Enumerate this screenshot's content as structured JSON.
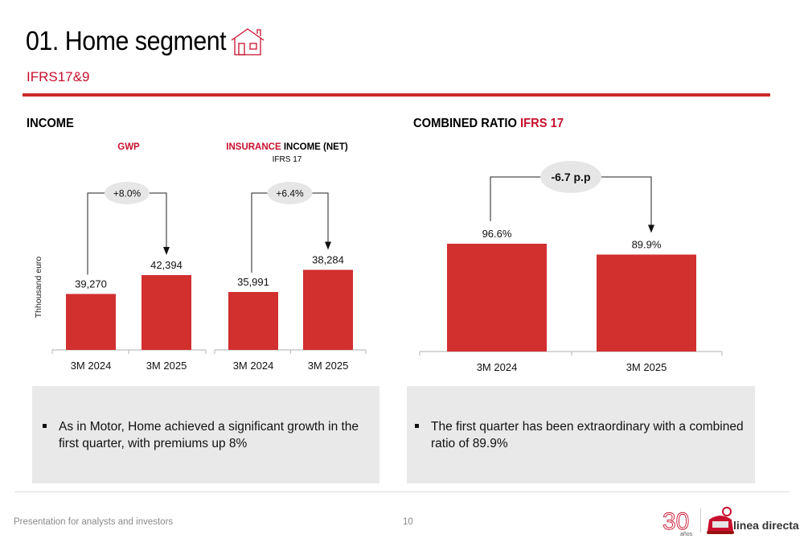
{
  "header": {
    "title": "01. Home segment",
    "subtitle": "IFRS17&9"
  },
  "income": {
    "section_title": "INCOME",
    "y_axis_label": "Thhousand euro",
    "gwp": {
      "title": "GWP",
      "change": "+8.0%"
    },
    "insurance_income": {
      "title_red": "INSURANCE",
      "title_black": " INCOME (NET)",
      "subtitle": "IFRS 17",
      "change": "+6.4%"
    }
  },
  "combined_ratio": {
    "section_title_black": "COMBINED RATIO ",
    "section_title_red": "IFRS 17",
    "change": "-6.7 p.p"
  },
  "chart_data": [
    {
      "type": "bar",
      "title": "GWP",
      "ylabel": "Thhousand euro",
      "categories": [
        "3M 2024",
        "3M 2025"
      ],
      "values": [
        39270,
        42394
      ],
      "value_labels": [
        "39,270",
        "42,394"
      ],
      "annotation": "+8.0%",
      "color": "#d22f2f"
    },
    {
      "type": "bar",
      "title": "INSURANCE INCOME (NET)",
      "subtitle": "IFRS 17",
      "categories": [
        "3M 2024",
        "3M 2025"
      ],
      "values": [
        35991,
        38284
      ],
      "value_labels": [
        "35,991",
        "38,284"
      ],
      "annotation": "+6.4%",
      "color": "#d22f2f"
    },
    {
      "type": "bar",
      "title": "COMBINED RATIO IFRS 17",
      "categories": [
        "3M 2024",
        "3M 2025"
      ],
      "values": [
        96.6,
        89.9
      ],
      "value_labels": [
        "96.6%",
        "89.9%"
      ],
      "annotation": "-6.7 p.p",
      "color": "#d22f2f"
    }
  ],
  "panels": {
    "left_bullet": "As in Motor, Home achieved a significant growth in the first quarter, with premiums up 8%",
    "right_bullet": "The first quarter has been extraordinary with a combined ratio of 89.9%"
  },
  "footer": {
    "left_text": "Presentation for analysts and investors",
    "page_number": "10",
    "logo_30": "30",
    "logo_30_sub": "años",
    "brand": "linea directa"
  },
  "colors": {
    "brand_red": "#c8102e",
    "bar_red": "#d22f2f",
    "panel_grey": "#e9e9e9"
  }
}
